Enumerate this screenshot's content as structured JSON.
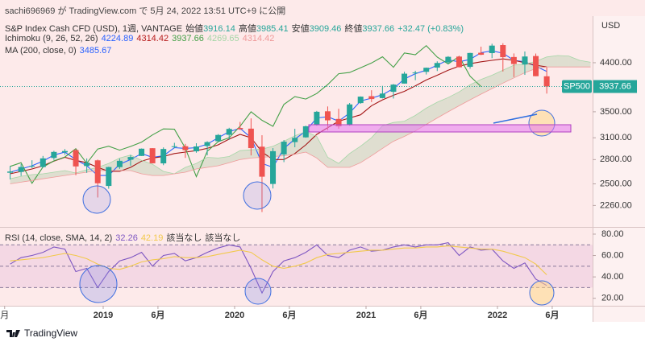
{
  "header": {
    "publisher": "sachi696969 が TradingView.com で 5月 24, 2022 13:51 UTC+9 に公開"
  },
  "footer": {
    "brand": "TradingView"
  },
  "chart_data": [
    {
      "type": "candlestick",
      "title": "S&P Index Cash CFD (USD), 1週, VANTAGE",
      "ohlc_legend": [
        {
          "label": "始値",
          "value": "3916.14"
        },
        {
          "label": "高値",
          "value": "3985.41"
        },
        {
          "label": "安値",
          "value": "3909.46"
        },
        {
          "label": "終値",
          "value": "3937.66"
        }
      ],
      "change": "+32.47 (+0.83%)",
      "legend_color": "#26a69a",
      "indicators": [
        {
          "name": "Ichimoku (9, 26, 52, 26)",
          "values": [
            {
              "text": "4224.89",
              "color": "#2962ff"
            },
            {
              "text": "4314.42",
              "color": "#b71c1c"
            },
            {
              "text": "3937.66",
              "color": "#43a047"
            },
            {
              "text": "4269.65",
              "color": "#a5d6a7"
            },
            {
              "text": "4314.42",
              "color": "#ef9a9a"
            }
          ]
        },
        {
          "name": "MA (200, close, 0)",
          "values": [
            {
              "text": "3485.67",
              "color": "#2962ff"
            }
          ]
        }
      ],
      "y_unit": "USD",
      "symbol": "SP500",
      "up_color": "#26a69a",
      "down_color": "#ef5350",
      "x": [
        "2018-04",
        "2018-05",
        "2018-06",
        "2018-07",
        "2018-08",
        "2018-09",
        "2018-10",
        "2018-11",
        "2018-12",
        "2019-01",
        "2019-02",
        "2019-03",
        "2019-04",
        "2019-05",
        "2019-06",
        "2019-07",
        "2019-08",
        "2019-09",
        "2019-10",
        "2019-11",
        "2019-12",
        "2020-01",
        "2020-02",
        "2020-03",
        "2020-04",
        "2020-05",
        "2020-06",
        "2020-07",
        "2020-08",
        "2020-09",
        "2020-10",
        "2020-11",
        "2020-12",
        "2021-01",
        "2021-02",
        "2021-03",
        "2021-04",
        "2021-05",
        "2021-06",
        "2021-07",
        "2021-08",
        "2021-09",
        "2021-10",
        "2021-11",
        "2021-12",
        "2022-01",
        "2022-02",
        "2022-03",
        "2022-04",
        "2022-05",
        "2022-06",
        "2022-07",
        "2022-08",
        "2022-09"
      ],
      "open": [
        2633,
        2643,
        2718,
        2704,
        2821,
        2896,
        2926,
        2717,
        2790,
        2476,
        2703,
        2798,
        2848,
        2953,
        2751,
        2971,
        2980,
        2910,
        2983,
        3050,
        3143,
        3245,
        3235,
        2974,
        2499,
        2869,
        3038,
        3106,
        3289,
        3508,
        3385,
        3296,
        3645,
        3764,
        3731,
        3842,
        3992,
        4191,
        4217,
        4301,
        4406,
        4528,
        4317,
        4610,
        4602,
        4778,
        4519,
        4364,
        4540,
        4130,
        null,
        null,
        null,
        null
      ],
      "high": [
        2717,
        2742,
        2791,
        2848,
        2917,
        2941,
        2940,
        2815,
        2800,
        2708,
        2813,
        2860,
        2949,
        2954,
        2964,
        3028,
        3013,
        3022,
        3050,
        3154,
        3248,
        3338,
        3394,
        3137,
        2954,
        3068,
        3233,
        3280,
        3514,
        3588,
        3550,
        3646,
        3760,
        3870,
        3950,
        3984,
        4218,
        4238,
        4302,
        4429,
        4537,
        4546,
        4608,
        4743,
        4808,
        4819,
        4595,
        4637,
        4593,
        4307,
        null,
        null,
        null,
        null
      ],
      "low": [
        2553,
        2594,
        2691,
        2698,
        2796,
        2864,
        2603,
        2632,
        2346,
        2444,
        2681,
        2722,
        2848,
        2750,
        2728,
        2953,
        2822,
        2891,
        2856,
        3050,
        3070,
        3214,
        2855,
        2192,
        2447,
        2767,
        2966,
        3101,
        3280,
        3210,
        3234,
        3280,
        3633,
        3662,
        3725,
        3723,
        3992,
        4056,
        4165,
        4233,
        4368,
        4306,
        4279,
        4560,
        4495,
        4223,
        4115,
        4158,
        4132,
        3810,
        null,
        null,
        null,
        null
      ],
      "close": [
        2648,
        2705,
        2718,
        2816,
        2902,
        2914,
        2712,
        2760,
        2507,
        2704,
        2784,
        2834,
        2946,
        2752,
        2942,
        2980,
        2926,
        2977,
        3038,
        3141,
        3231,
        3226,
        2954,
        2585,
        2912,
        3044,
        3100,
        3271,
        3500,
        3363,
        3270,
        3622,
        3756,
        3714,
        3811,
        3973,
        4181,
        4204,
        4298,
        4395,
        4523,
        4308,
        4605,
        4567,
        4766,
        4516,
        4374,
        4530,
        4132,
        3937.66,
        null,
        null,
        null,
        null
      ],
      "series": [
        {
          "color": "#2962ff",
          "values": [
            2640,
            2680,
            2720,
            2780,
            2860,
            2900,
            2800,
            2720,
            2600,
            2600,
            2740,
            2800,
            2880,
            2830,
            2850,
            2960,
            2950,
            2960,
            3010,
            3100,
            3190,
            3240,
            3100,
            2750,
            2700,
            2950,
            3080,
            3200,
            3400,
            3420,
            3350,
            3480,
            3680,
            3730,
            3790,
            3900,
            4080,
            4180,
            4250,
            4350,
            4460,
            4420,
            4470,
            4610,
            4650,
            4600,
            4450,
            4420,
            4330,
            4225,
            null,
            null,
            null,
            null
          ]
        },
        {
          "color": "#a31515",
          "values": [
            2620,
            2650,
            2680,
            2720,
            2780,
            2830,
            2790,
            2760,
            2700,
            2650,
            2650,
            2700,
            2780,
            2820,
            2840,
            2880,
            2900,
            2920,
            2950,
            3000,
            3080,
            3150,
            3100,
            2900,
            2800,
            2800,
            2880,
            3000,
            3150,
            3250,
            3350,
            3400,
            3450,
            3600,
            3700,
            3780,
            3850,
            3950,
            4060,
            4150,
            4250,
            4330,
            4380,
            4420,
            4450,
            4480,
            4450,
            4400,
            4350,
            4314,
            null,
            null,
            null,
            null
          ]
        },
        {
          "color": "#43a047",
          "values": [
            2712,
            2760,
            2507,
            2704,
            2784,
            2834,
            2946,
            2752,
            2942,
            2980,
            2926,
            2977,
            3038,
            3141,
            3231,
            3226,
            2954,
            2585,
            2912,
            3044,
            3100,
            3271,
            3500,
            3363,
            3270,
            3622,
            3756,
            3714,
            3811,
            3973,
            4181,
            4204,
            4298,
            4395,
            4523,
            4308,
            4605,
            4567,
            4766,
            4516,
            4374,
            4530,
            4132,
            3938,
            null,
            null,
            null,
            null,
            null,
            null,
            null,
            null,
            null,
            null
          ]
        },
        {
          "color": "#a5d6a7",
          "values": [
            2560,
            2590,
            2610,
            2620,
            2640,
            2660,
            2630,
            2670,
            2700,
            2750,
            2820,
            2860,
            2790,
            2740,
            2650,
            2620,
            2700,
            2750,
            2830,
            2820,
            2840,
            2920,
            2930,
            2940,
            2980,
            3050,
            3130,
            3190,
            3120,
            2830,
            2750,
            2880,
            2980,
            3100,
            3280,
            3330,
            3350,
            3440,
            3560,
            3660,
            3740,
            3840,
            3970,
            4070,
            4150,
            4250,
            4350,
            4370,
            4430,
            4520,
            4550,
            4540,
            4450,
            4410
          ]
        },
        {
          "color": "#ef9a9a",
          "values": [
            2500,
            2520,
            2540,
            2560,
            2580,
            2600,
            2620,
            2640,
            2660,
            2660,
            2660,
            2660,
            2620,
            2600,
            2600,
            2620,
            2640,
            2680,
            2700,
            2720,
            2760,
            2800,
            2820,
            2830,
            2840,
            2850,
            2870,
            2900,
            2820,
            2700,
            2700,
            2700,
            2760,
            2850,
            2950,
            3050,
            3120,
            3200,
            3300,
            3400,
            3500,
            3600,
            3700,
            3800,
            3900,
            4000,
            4100,
            4200,
            4280,
            4314,
            4314,
            4314,
            4314,
            4314
          ]
        }
      ],
      "cloud_colors": [
        "rgba(120,180,120,0.22)",
        "rgba(200,120,120,0.22)"
      ],
      "log": true,
      "ylim": [
        2045,
        5470
      ],
      "yticks": [
        {
          "value": 2260,
          "label": "2260.00"
        },
        {
          "value": 2500,
          "label": "2500.00"
        },
        {
          "value": 2800,
          "label": "2800.00"
        },
        {
          "value": 3100,
          "label": "3100.00"
        },
        {
          "value": 3500,
          "label": "3500.00"
        },
        {
          "value": 4400,
          "label": "4400.00"
        }
      ]
    },
    {
      "type": "line",
      "title": "RSI (14, close, SMA, 14, 2)",
      "legend_values": [
        {
          "text": "32.26",
          "color": "#7e57c2"
        },
        {
          "text": "42.19",
          "color": "#f2c94c"
        }
      ],
      "na_labels": [
        "該当なし",
        "該当なし"
      ],
      "series": [
        {
          "color": "#7e57c2",
          "values": [
            52,
            58,
            60,
            63,
            68,
            66,
            45,
            48,
            30,
            45,
            55,
            58,
            63,
            50,
            60,
            62,
            55,
            58,
            63,
            67,
            70,
            68,
            48,
            25,
            45,
            55,
            58,
            63,
            70,
            60,
            58,
            65,
            68,
            64,
            65,
            68,
            70,
            68,
            70,
            70,
            72,
            60,
            68,
            65,
            66,
            55,
            48,
            53,
            38,
            32,
            null,
            null,
            null,
            null
          ]
        },
        {
          "color": "#f2c94c",
          "values": [
            55,
            56,
            57,
            58,
            60,
            62,
            60,
            57,
            52,
            48,
            47,
            50,
            54,
            56,
            57,
            59,
            58,
            58,
            59,
            61,
            63,
            65,
            63,
            56,
            50,
            48,
            50,
            53,
            58,
            61,
            62,
            63,
            64,
            65,
            65,
            66,
            67,
            67,
            68,
            68,
            69,
            68,
            67,
            66,
            66,
            64,
            61,
            58,
            52,
            42,
            null,
            null,
            null,
            null
          ]
        }
      ],
      "bands": [
        70,
        50,
        30
      ],
      "band_color": "rgba(156,39,176,0.09)",
      "ylim": [
        13,
        86
      ],
      "yticks": [
        {
          "value": 80,
          "label": "80.00"
        },
        {
          "value": 60,
          "label": "60.00"
        },
        {
          "value": 40,
          "label": "40.00"
        },
        {
          "value": 20,
          "label": "20.00"
        }
      ],
      "xticks": [
        {
          "value": "2018-04",
          "label": "月"
        },
        {
          "value": "2019-01",
          "label": "2019"
        },
        {
          "value": "2019-06",
          "label": "6月"
        },
        {
          "value": "2020-01",
          "label": "2020"
        },
        {
          "value": "2020-06",
          "label": "6月"
        },
        {
          "value": "2021-01",
          "label": "2021"
        },
        {
          "value": "2021-06",
          "label": "6月"
        },
        {
          "value": "2022-01",
          "label": "2022"
        },
        {
          "value": "2022-06",
          "label": "6月"
        }
      ]
    }
  ]
}
